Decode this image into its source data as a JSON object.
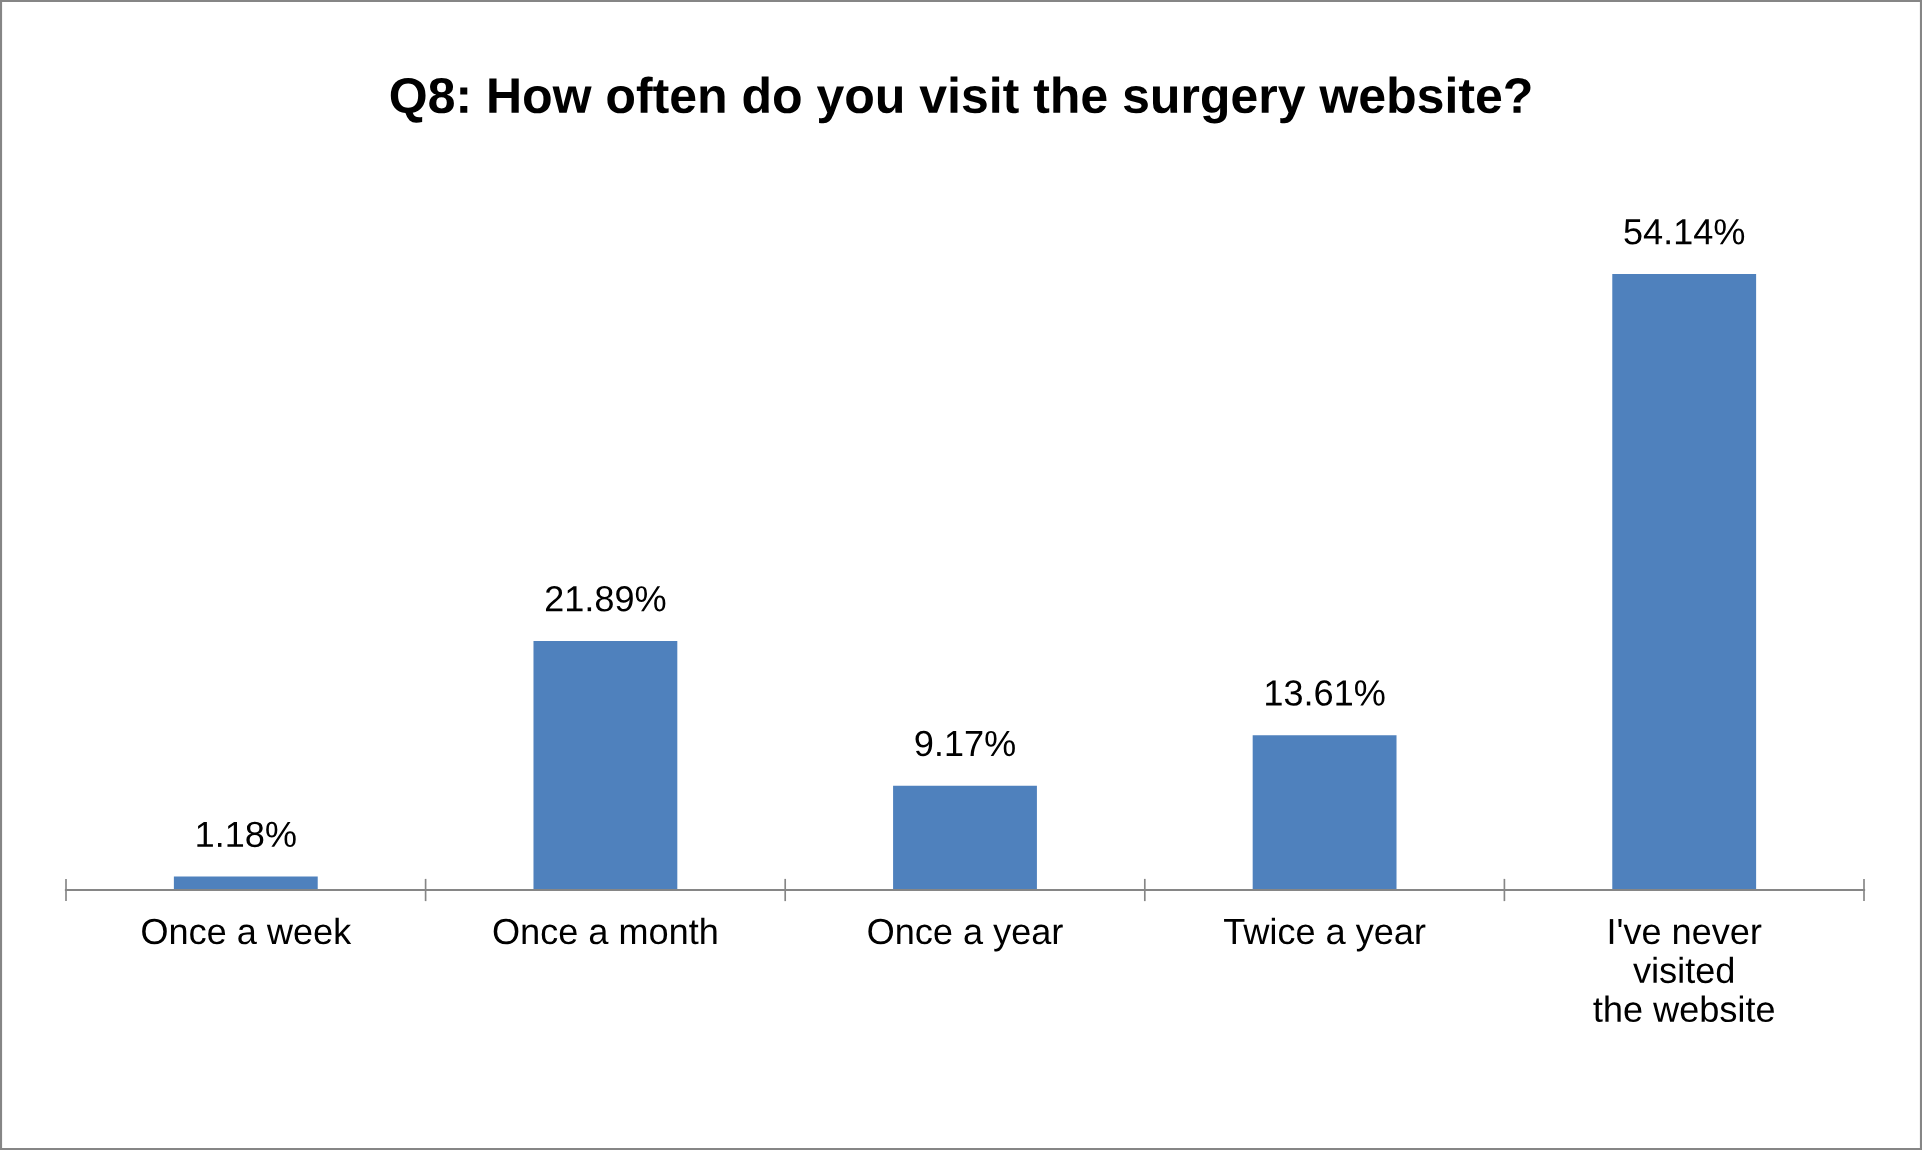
{
  "chart_data": {
    "type": "bar",
    "title": "Q8: How often do you visit the surgery website?",
    "categories": [
      "Once a week",
      "Once a month",
      "Once a year",
      "Twice a year",
      "I've never\nvisited\nthe website"
    ],
    "values": [
      1.18,
      21.89,
      9.17,
      13.61,
      54.14
    ],
    "value_labels": [
      "1.18%",
      "21.89%",
      "9.17%",
      "13.61%",
      "54.14%"
    ],
    "color": "#4f81bd",
    "grid": false,
    "legend": false
  }
}
